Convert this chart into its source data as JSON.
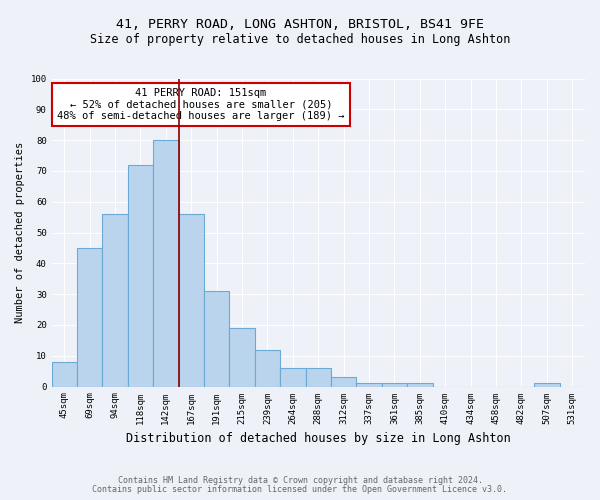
{
  "title1": "41, PERRY ROAD, LONG ASHTON, BRISTOL, BS41 9FE",
  "title2": "Size of property relative to detached houses in Long Ashton",
  "xlabel": "Distribution of detached houses by size in Long Ashton",
  "ylabel": "Number of detached properties",
  "categories": [
    "45sqm",
    "69sqm",
    "94sqm",
    "118sqm",
    "142sqm",
    "167sqm",
    "191sqm",
    "215sqm",
    "239sqm",
    "264sqm",
    "288sqm",
    "312sqm",
    "337sqm",
    "361sqm",
    "385sqm",
    "410sqm",
    "434sqm",
    "458sqm",
    "482sqm",
    "507sqm",
    "531sqm"
  ],
  "values": [
    8,
    45,
    56,
    72,
    80,
    56,
    31,
    19,
    12,
    6,
    6,
    3,
    1,
    1,
    1,
    0,
    0,
    0,
    0,
    1,
    0
  ],
  "bar_color": "#bad4ee",
  "bar_edge_color": "#6aaad4",
  "vline_color": "#8b0000",
  "annotation_text": "41 PERRY ROAD: 151sqm\n← 52% of detached houses are smaller (205)\n48% of semi-detached houses are larger (189) →",
  "annotation_box_color": "white",
  "annotation_box_edge_color": "#cc0000",
  "ylim": [
    0,
    100
  ],
  "yticks": [
    0,
    10,
    20,
    30,
    40,
    50,
    60,
    70,
    80,
    90,
    100
  ],
  "footnote1": "Contains HM Land Registry data © Crown copyright and database right 2024.",
  "footnote2": "Contains public sector information licensed under the Open Government Licence v3.0.",
  "background_color": "#eef2f8",
  "grid_color": "white",
  "title1_fontsize": 9.5,
  "title2_fontsize": 8.5,
  "xlabel_fontsize": 8.5,
  "ylabel_fontsize": 7.5,
  "tick_fontsize": 6.5,
  "annotation_fontsize": 7.5,
  "footnote_fontsize": 6
}
